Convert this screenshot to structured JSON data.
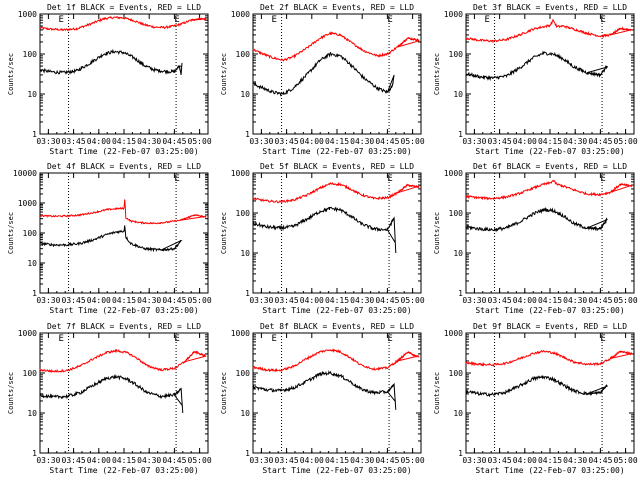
{
  "figure": {
    "background": "#ffffff",
    "axis_color": "#000000",
    "events_color": "#000000",
    "lld_color": "#ff0000"
  },
  "chart_data": [
    {
      "type": "line",
      "detector": "1f",
      "title": "Det 1f BLACK = Events, RED = LLD",
      "xlabel": "Start Time (22-Feb-07 03:25:00)",
      "ylabel": "Counts/sec",
      "y_scale": "log",
      "ylim": [
        1,
        1000
      ],
      "yticks": [
        "1",
        "10",
        "100",
        "1000"
      ],
      "x_unit": "minutes after 03:25:00",
      "xlim": [
        0,
        100
      ],
      "xtick_labels": [
        "03:30",
        "03:45",
        "04:00",
        "04:15",
        "04:30",
        "04:45",
        "05:00"
      ],
      "markers": [
        {
          "x": 11,
          "label": "E"
        },
        {
          "x": 80,
          "label": "E"
        }
      ],
      "dotted_lines": [
        17,
        81
      ],
      "series": [
        {
          "role": "lld",
          "color": "#ff0000",
          "x": [
            0,
            6,
            14,
            22,
            30,
            38,
            44,
            50,
            56,
            62,
            68,
            74,
            80,
            85,
            90,
            95,
            99
          ],
          "y": [
            450,
            420,
            400,
            430,
            560,
            760,
            820,
            800,
            680,
            540,
            470,
            460,
            500,
            580,
            700,
            770,
            740
          ]
        },
        {
          "role": "events",
          "color": "#000000",
          "x": [
            0,
            6,
            14,
            22,
            30,
            38,
            44,
            50,
            56,
            62,
            68,
            74,
            80,
            83,
            84,
            84.5
          ],
          "y": [
            40,
            36,
            34,
            38,
            60,
            100,
            115,
            108,
            80,
            52,
            40,
            37,
            36,
            50,
            30,
            60
          ]
        }
      ]
    },
    {
      "type": "line",
      "detector": "2f",
      "title": "Det 2f BLACK = Events, RED = LLD",
      "xlabel": "Start Time (22-Feb-07 03:25:00)",
      "ylabel": "Counts/sec",
      "y_scale": "log",
      "ylim": [
        1,
        1000
      ],
      "yticks": [
        "1",
        "10",
        "100",
        "1000"
      ],
      "x_unit": "minutes after 03:25:00",
      "xlim": [
        0,
        100
      ],
      "xtick_labels": [
        "03:30",
        "03:45",
        "04:00",
        "04:15",
        "04:30",
        "04:45",
        "05:00"
      ],
      "markers": [
        {
          "x": 11,
          "label": "E"
        },
        {
          "x": 80,
          "label": "E"
        }
      ],
      "dotted_lines": [
        17,
        81
      ],
      "series": [
        {
          "role": "lld",
          "color": "#ff0000",
          "x": [
            0,
            6,
            12,
            18,
            24,
            32,
            40,
            46,
            52,
            58,
            66,
            74,
            80,
            86,
            92,
            99
          ],
          "y": [
            130,
            100,
            80,
            70,
            85,
            140,
            250,
            330,
            300,
            200,
            120,
            90,
            100,
            150,
            250,
            220
          ]
        },
        {
          "role": "events",
          "color": "#000000",
          "x": [
            0,
            6,
            12,
            18,
            24,
            32,
            40,
            46,
            52,
            58,
            66,
            74,
            80,
            83,
            84
          ],
          "y": [
            18,
            14,
            11,
            10,
            14,
            30,
            70,
            100,
            90,
            55,
            25,
            14,
            11,
            16,
            30
          ]
        }
      ]
    },
    {
      "type": "line",
      "detector": "3f",
      "title": "Det 3f BLACK = Events, RED = LLD",
      "xlabel": "Start Time (22-Feb-07 03:25:00)",
      "ylabel": "Counts/sec",
      "y_scale": "log",
      "ylim": [
        1,
        1000
      ],
      "yticks": [
        "1",
        "10",
        "100",
        "1000"
      ],
      "x_unit": "minutes after 03:25:00",
      "xlim": [
        0,
        100
      ],
      "xtick_labels": [
        "03:30",
        "03:45",
        "04:00",
        "04:15",
        "04:30",
        "04:45",
        "05:00"
      ],
      "markers": [
        {
          "x": 11,
          "label": "E"
        },
        {
          "x": 80,
          "label": "E"
        }
      ],
      "dotted_lines": [
        17,
        81
      ],
      "series": [
        {
          "role": "lld",
          "color": "#ff0000",
          "x": [
            0,
            8,
            16,
            24,
            32,
            40,
            46,
            50,
            52,
            54,
            58,
            64,
            72,
            80,
            86,
            92,
            99
          ],
          "y": [
            250,
            220,
            210,
            230,
            300,
            420,
            480,
            520,
            700,
            480,
            500,
            420,
            330,
            280,
            300,
            430,
            400
          ]
        },
        {
          "role": "events",
          "color": "#000000",
          "x": [
            0,
            8,
            16,
            24,
            32,
            40,
            46,
            52,
            58,
            64,
            72,
            80,
            84
          ],
          "y": [
            32,
            27,
            25,
            28,
            45,
            80,
            105,
            100,
            75,
            48,
            34,
            30,
            50
          ]
        }
      ]
    },
    {
      "type": "line",
      "detector": "4f",
      "title": "Det 4f BLACK = Events, RED = LLD",
      "xlabel": "Start Time (22-Feb-07 03:25:00)",
      "ylabel": "Counts/sec",
      "y_scale": "log",
      "ylim": [
        1,
        10000
      ],
      "yticks": [
        "1",
        "10",
        "100",
        "1000",
        "10000"
      ],
      "x_unit": "minutes after 03:25:00",
      "xlim": [
        0,
        100
      ],
      "xtick_labels": [
        "03:30",
        "03:45",
        "04:00",
        "04:15",
        "04:30",
        "04:45",
        "05:00"
      ],
      "markers": [
        {
          "x": 80,
          "label": "E"
        }
      ],
      "dotted_lines": [
        17,
        81
      ],
      "series": [
        {
          "role": "lld",
          "color": "#ff0000",
          "x": [
            0,
            8,
            16,
            24,
            32,
            40,
            46,
            50,
            50.5,
            51,
            54,
            60,
            68,
            76,
            84,
            92,
            99
          ],
          "y": [
            380,
            360,
            370,
            400,
            480,
            600,
            650,
            660,
            1500,
            330,
            250,
            220,
            210,
            230,
            270,
            400,
            340
          ]
        },
        {
          "role": "events",
          "color": "#000000",
          "x": [
            0,
            8,
            16,
            24,
            32,
            40,
            46,
            50,
            50.5,
            51,
            54,
            62,
            72,
            80,
            84
          ],
          "y": [
            45,
            40,
            40,
            45,
            60,
            90,
            110,
            115,
            200,
            75,
            45,
            30,
            27,
            30,
            55
          ]
        }
      ]
    },
    {
      "type": "line",
      "detector": "5f",
      "title": "Det 5f BLACK = Events, RED = LLD",
      "xlabel": "Start Time (22-Feb-07 03:25:00)",
      "ylabel": "Counts/sec",
      "y_scale": "log",
      "ylim": [
        1,
        1000
      ],
      "yticks": [
        "1",
        "10",
        "100",
        "1000"
      ],
      "x_unit": "minutes after 03:25:00",
      "xlim": [
        0,
        100
      ],
      "xtick_labels": [
        "03:30",
        "03:45",
        "04:00",
        "04:15",
        "04:30",
        "04:45",
        "05:00"
      ],
      "markers": [
        {
          "x": 80,
          "label": "E"
        }
      ],
      "dotted_lines": [
        17,
        81
      ],
      "series": [
        {
          "role": "lld",
          "color": "#ff0000",
          "x": [
            0,
            8,
            16,
            24,
            32,
            40,
            46,
            52,
            58,
            64,
            72,
            80,
            86,
            92,
            99
          ],
          "y": [
            230,
            200,
            190,
            210,
            280,
            420,
            540,
            520,
            400,
            290,
            230,
            240,
            320,
            500,
            440
          ]
        },
        {
          "role": "events",
          "color": "#000000",
          "x": [
            0,
            8,
            16,
            24,
            32,
            40,
            46,
            52,
            58,
            64,
            72,
            80,
            84,
            85
          ],
          "y": [
            55,
            45,
            42,
            46,
            70,
            110,
            130,
            120,
            85,
            55,
            40,
            38,
            75,
            10
          ]
        }
      ]
    },
    {
      "type": "line",
      "detector": "6f",
      "title": "Det 6f BLACK = Events, RED = LLD",
      "xlabel": "Start Time (22-Feb-07 03:25:00)",
      "ylabel": "Counts/sec",
      "y_scale": "log",
      "ylim": [
        1,
        1000
      ],
      "yticks": [
        "1",
        "10",
        "100",
        "1000"
      ],
      "x_unit": "minutes after 03:25:00",
      "xlim": [
        0,
        100
      ],
      "xtick_labels": [
        "03:30",
        "03:45",
        "04:00",
        "04:15",
        "04:30",
        "04:45",
        "05:00"
      ],
      "markers": [
        {
          "x": 80,
          "label": "E"
        }
      ],
      "dotted_lines": [
        17,
        81
      ],
      "series": [
        {
          "role": "lld",
          "color": "#ff0000",
          "x": [
            0,
            8,
            16,
            24,
            32,
            40,
            46,
            50,
            52,
            54,
            58,
            64,
            72,
            80,
            86,
            92,
            99
          ],
          "y": [
            260,
            240,
            230,
            250,
            310,
            420,
            520,
            560,
            650,
            520,
            470,
            380,
            300,
            290,
            330,
            520,
            470
          ]
        },
        {
          "role": "events",
          "color": "#000000",
          "x": [
            0,
            8,
            16,
            24,
            32,
            40,
            46,
            52,
            58,
            64,
            72,
            80,
            84
          ],
          "y": [
            45,
            40,
            38,
            42,
            60,
            95,
            120,
            115,
            85,
            55,
            42,
            40,
            70
          ]
        }
      ]
    },
    {
      "type": "line",
      "detector": "7f",
      "title": "Det 7f BLACK = Events, RED = LLD",
      "xlabel": "Start Time (22-Feb-07 03:25:00)",
      "ylabel": "Counts/sec",
      "y_scale": "log",
      "ylim": [
        1,
        1000
      ],
      "yticks": [
        "1",
        "10",
        "100",
        "1000"
      ],
      "x_unit": "minutes after 03:25:00",
      "xlim": [
        0,
        100
      ],
      "xtick_labels": [
        "03:30",
        "03:45",
        "04:00",
        "04:15",
        "04:30",
        "04:45",
        "05:00"
      ],
      "markers": [
        {
          "x": 11,
          "label": "E"
        },
        {
          "x": 80,
          "label": "E"
        }
      ],
      "dotted_lines": [
        17,
        81
      ],
      "series": [
        {
          "role": "lld",
          "color": "#ff0000",
          "x": [
            0,
            8,
            16,
            24,
            32,
            40,
            46,
            52,
            58,
            64,
            72,
            80,
            86,
            92,
            99
          ],
          "y": [
            120,
            110,
            115,
            150,
            230,
            330,
            360,
            320,
            230,
            150,
            120,
            130,
            190,
            340,
            260
          ]
        },
        {
          "role": "events",
          "color": "#000000",
          "x": [
            0,
            8,
            16,
            24,
            32,
            40,
            46,
            52,
            58,
            64,
            72,
            80,
            84,
            85
          ],
          "y": [
            28,
            25,
            26,
            32,
            50,
            75,
            80,
            70,
            48,
            32,
            26,
            28,
            40,
            10
          ]
        }
      ]
    },
    {
      "type": "line",
      "detector": "8f",
      "title": "Det 8f BLACK = Events, RED = LLD",
      "xlabel": "Start Time (22-Feb-07 03:25:00)",
      "ylabel": "Counts/sec",
      "y_scale": "log",
      "ylim": [
        1,
        1000
      ],
      "yticks": [
        "1",
        "10",
        "100",
        "1000"
      ],
      "x_unit": "minutes after 03:25:00",
      "xlim": [
        0,
        100
      ],
      "xtick_labels": [
        "03:30",
        "03:45",
        "04:00",
        "04:15",
        "04:30",
        "04:45",
        "05:00"
      ],
      "markers": [
        {
          "x": 11,
          "label": "E"
        },
        {
          "x": 80,
          "label": "E"
        }
      ],
      "dotted_lines": [
        17,
        81
      ],
      "series": [
        {
          "role": "lld",
          "color": "#ff0000",
          "x": [
            0,
            8,
            16,
            24,
            32,
            40,
            46,
            52,
            58,
            64,
            72,
            80,
            86,
            92,
            99
          ],
          "y": [
            140,
            120,
            115,
            145,
            230,
            340,
            380,
            340,
            240,
            160,
            125,
            135,
            200,
            330,
            250
          ]
        },
        {
          "role": "events",
          "color": "#000000",
          "x": [
            0,
            8,
            16,
            24,
            32,
            40,
            46,
            52,
            58,
            64,
            72,
            80,
            84,
            85
          ],
          "y": [
            45,
            38,
            36,
            42,
            62,
            95,
            100,
            85,
            60,
            40,
            32,
            34,
            50,
            12
          ]
        }
      ]
    },
    {
      "type": "line",
      "detector": "9f",
      "title": "Det 9f BLACK = Events, RED = LLD",
      "xlabel": "Start Time (22-Feb-07 03:25:00)",
      "ylabel": "Counts/sec",
      "y_scale": "log",
      "ylim": [
        1,
        1000
      ],
      "yticks": [
        "1",
        "10",
        "100",
        "1000"
      ],
      "x_unit": "minutes after 03:25:00",
      "xlim": [
        0,
        100
      ],
      "xtick_labels": [
        "03:30",
        "03:45",
        "04:00",
        "04:15",
        "04:30",
        "04:45",
        "05:00"
      ],
      "markers": [
        {
          "x": 80,
          "label": "E"
        }
      ],
      "dotted_lines": [
        17,
        81
      ],
      "series": [
        {
          "role": "lld",
          "color": "#ff0000",
          "x": [
            0,
            8,
            16,
            24,
            32,
            40,
            46,
            52,
            58,
            64,
            72,
            80,
            86,
            92,
            99
          ],
          "y": [
            180,
            165,
            160,
            175,
            230,
            310,
            350,
            320,
            250,
            190,
            165,
            170,
            230,
            350,
            300
          ]
        },
        {
          "role": "events",
          "color": "#000000",
          "x": [
            0,
            8,
            16,
            24,
            32,
            40,
            46,
            52,
            58,
            64,
            72,
            80,
            84
          ],
          "y": [
            35,
            30,
            29,
            33,
            48,
            72,
            80,
            70,
            50,
            36,
            30,
            32,
            50
          ]
        }
      ]
    }
  ]
}
